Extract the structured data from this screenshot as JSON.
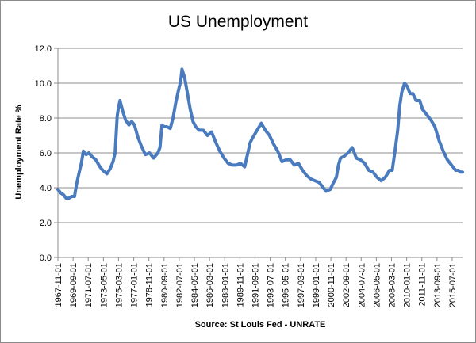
{
  "chart_data": {
    "type": "line",
    "title": "US Unemployment",
    "ylabel": "Unemployment Rate %",
    "xlabel": "Source: St Louis Fed - UNRATE",
    "ylim": [
      0,
      12
    ],
    "yticks": [
      "0.0",
      "2.0",
      "4.0",
      "6.0",
      "8.0",
      "10.0",
      "12.0"
    ],
    "xlim": [
      "1967-11-01",
      "2016-10-01"
    ],
    "xticks": [
      "1967-11-01",
      "1969-09-01",
      "1971-07-01",
      "1973-05-01",
      "1975-03-01",
      "1977-01-01",
      "1978-11-01",
      "1980-09-01",
      "1982-07-01",
      "1984-05-01",
      "1986-03-01",
      "1988-01-01",
      "1989-11-01",
      "1991-09-01",
      "1993-07-01",
      "1995-05-01",
      "1997-03-01",
      "1999-01-01",
      "2000-11-01",
      "2002-09-01",
      "2004-07-01",
      "2006-05-01",
      "2008-03-01",
      "2010-01-01",
      "2011-11-01",
      "2013-09-01",
      "2015-07-01"
    ],
    "grid": "horizontal",
    "line_color": "#4a7bbf",
    "series": [
      {
        "x": [
          "1967-11-01",
          "1968-03-01",
          "1968-07-01",
          "1968-11-01",
          "1969-03-01",
          "1969-07-01",
          "1969-11-01",
          "1970-02-01",
          "1970-06-01",
          "1970-09-01",
          "1970-12-01",
          "1971-04-01",
          "1971-08-01",
          "1971-12-01",
          "1972-06-01",
          "1972-12-01",
          "1973-04-01",
          "1973-10-01",
          "1974-03-01",
          "1974-07-01",
          "1974-10-01",
          "1975-01-01",
          "1975-03-01",
          "1975-05-01",
          "1975-09-01",
          "1976-01-01",
          "1976-06-01",
          "1976-10-01",
          "1977-02-01",
          "1977-07-01",
          "1977-12-01",
          "1978-06-01",
          "1978-12-01",
          "1979-06-01",
          "1979-12-01",
          "1980-03-01",
          "1980-06-01",
          "1980-09-01",
          "1981-01-01",
          "1981-06-01",
          "1981-10-01",
          "1982-02-01",
          "1982-06-01",
          "1982-09-01",
          "1982-11-01",
          "1983-03-01",
          "1983-07-01",
          "1983-11-01",
          "1984-03-01",
          "1984-07-01",
          "1984-12-01",
          "1985-06-01",
          "1985-12-01",
          "1986-06-01",
          "1986-12-01",
          "1987-06-01",
          "1987-12-01",
          "1988-06-01",
          "1988-12-01",
          "1989-06-01",
          "1989-12-01",
          "1990-06-01",
          "1990-10-01",
          "1991-02-01",
          "1991-06-01",
          "1991-12-01",
          "1992-06-01",
          "1992-12-01",
          "1993-06-01",
          "1993-12-01",
          "1994-06-01",
          "1994-12-01",
          "1995-06-01",
          "1995-12-01",
          "1996-06-01",
          "1996-12-01",
          "1997-06-01",
          "1997-12-01",
          "1998-06-01",
          "1998-12-01",
          "1999-06-01",
          "1999-12-01",
          "2000-04-01",
          "2000-10-01",
          "2001-03-01",
          "2001-07-01",
          "2001-10-01",
          "2002-01-01",
          "2002-06-01",
          "2002-12-01",
          "2003-06-01",
          "2003-12-01",
          "2004-06-01",
          "2004-12-01",
          "2005-06-01",
          "2005-12-01",
          "2006-06-01",
          "2006-12-01",
          "2007-06-01",
          "2007-12-01",
          "2008-04-01",
          "2008-08-01",
          "2008-12-01",
          "2009-03-01",
          "2009-06-01",
          "2009-10-01",
          "2010-02-01",
          "2010-06-01",
          "2010-10-01",
          "2011-03-01",
          "2011-08-01",
          "2011-12-01",
          "2012-06-01",
          "2012-12-01",
          "2013-06-01",
          "2013-12-01",
          "2014-06-01",
          "2014-12-01",
          "2015-06-01",
          "2015-12-01",
          "2016-04-01",
          "2016-07-01",
          "2016-10-01"
        ],
        "values": [
          3.9,
          3.7,
          3.6,
          3.4,
          3.4,
          3.5,
          3.5,
          4.2,
          4.9,
          5.4,
          6.1,
          5.9,
          6.0,
          5.8,
          5.6,
          5.2,
          5.0,
          4.8,
          5.1,
          5.5,
          6.0,
          8.1,
          8.6,
          9.0,
          8.4,
          7.9,
          7.6,
          7.8,
          7.6,
          6.9,
          6.4,
          5.9,
          6.0,
          5.7,
          6.0,
          6.3,
          7.6,
          7.5,
          7.5,
          7.4,
          8.0,
          8.9,
          9.6,
          10.1,
          10.8,
          10.3,
          9.4,
          8.5,
          7.8,
          7.5,
          7.3,
          7.3,
          7.0,
          7.2,
          6.6,
          6.1,
          5.7,
          5.4,
          5.3,
          5.3,
          5.4,
          5.2,
          5.9,
          6.6,
          6.9,
          7.3,
          7.7,
          7.3,
          7.0,
          6.5,
          6.1,
          5.5,
          5.6,
          5.6,
          5.3,
          5.4,
          5.0,
          4.7,
          4.5,
          4.4,
          4.3,
          4.0,
          3.8,
          3.9,
          4.3,
          4.6,
          5.3,
          5.7,
          5.8,
          6.0,
          6.3,
          5.7,
          5.6,
          5.4,
          5.0,
          4.9,
          4.6,
          4.4,
          4.6,
          5.0,
          5.0,
          6.1,
          7.3,
          8.7,
          9.5,
          10.0,
          9.8,
          9.4,
          9.4,
          9.0,
          9.0,
          8.5,
          8.2,
          7.9,
          7.5,
          6.7,
          6.1,
          5.6,
          5.3,
          5.0,
          5.0,
          4.9,
          4.9
        ]
      }
    ]
  }
}
